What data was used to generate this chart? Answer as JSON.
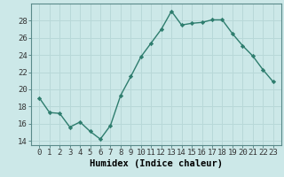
{
  "x": [
    0,
    1,
    2,
    3,
    4,
    5,
    6,
    7,
    8,
    9,
    10,
    11,
    12,
    13,
    14,
    15,
    16,
    17,
    18,
    19,
    20,
    21,
    22,
    23
  ],
  "y": [
    19.0,
    17.3,
    17.2,
    15.6,
    16.2,
    15.1,
    14.2,
    15.8,
    19.3,
    21.5,
    23.8,
    25.4,
    27.0,
    29.1,
    27.5,
    27.7,
    27.8,
    28.1,
    28.1,
    26.5,
    25.1,
    23.9,
    22.3,
    20.9
  ],
  "line_color": "#2e7d6e",
  "marker": "D",
  "markersize": 2.2,
  "linewidth": 1.0,
  "bg_color": "#cce8e8",
  "grid_color": "#b8d8d8",
  "xlabel": "Humidex (Indice chaleur)",
  "ylim": [
    13.5,
    30.0
  ],
  "yticks": [
    14,
    16,
    18,
    20,
    22,
    24,
    26,
    28
  ],
  "xticks": [
    0,
    1,
    2,
    3,
    4,
    5,
    6,
    7,
    8,
    9,
    10,
    11,
    12,
    13,
    14,
    15,
    16,
    17,
    18,
    19,
    20,
    21,
    22,
    23
  ],
  "xlabel_fontsize": 7.5,
  "tick_fontsize": 6.5
}
